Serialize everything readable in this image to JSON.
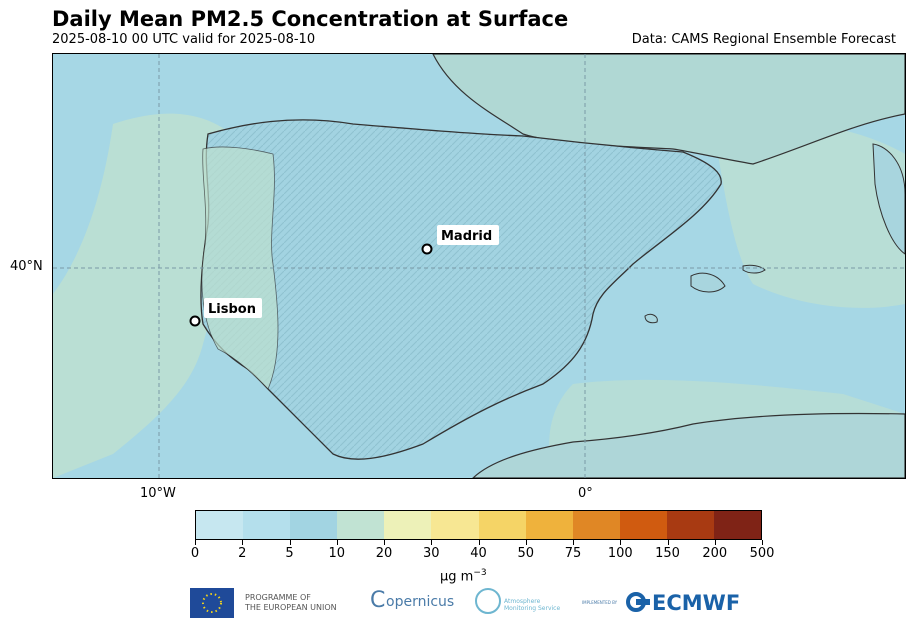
{
  "header": {
    "title": "Daily Mean PM2.5 Concentration at Surface",
    "subtitle": "2025-08-10 00 UTC valid for 2025-08-10",
    "source": "Data: CAMS Regional Ensemble Forecast"
  },
  "map": {
    "region": "Iberian Peninsula",
    "gridlines": {
      "latitude": [
        {
          "value": 40,
          "label": "40°N"
        }
      ],
      "longitude": [
        {
          "value": -10,
          "label": "10°W"
        },
        {
          "value": 0,
          "label": "0°"
        }
      ]
    },
    "cities": [
      {
        "name": "Madrid",
        "lat": 40.42,
        "lon": -3.7
      },
      {
        "name": "Lisbon",
        "lat": 38.72,
        "lon": -9.14
      }
    ],
    "colors": {
      "low": "#a3d5e3",
      "mid": "#bfe0d2",
      "land_shade": "#8ab9c6"
    }
  },
  "colorbar": {
    "ticks": [
      "0",
      "2",
      "5",
      "10",
      "20",
      "30",
      "40",
      "50",
      "75",
      "100",
      "150",
      "200",
      "500"
    ],
    "colors": [
      "#c6e7f0",
      "#b4dfec",
      "#a2d4e2",
      "#c1e3d3",
      "#edf1b8",
      "#f7e793",
      "#f5d466",
      "#efb23c",
      "#e08725",
      "#d05b10",
      "#a83a12",
      "#7f2316"
    ],
    "unit_prefix": "μg m",
    "unit_exp": "−3"
  },
  "footer": {
    "eu_text_1": "PROGRAMME OF",
    "eu_text_2": "THE EUROPEAN UNION",
    "copernicus": "opernicus",
    "ams_text": "Atmosphere Monitoring Service",
    "implemented_by": "IMPLEMENTED BY",
    "ecmwf": "ECMWF"
  }
}
